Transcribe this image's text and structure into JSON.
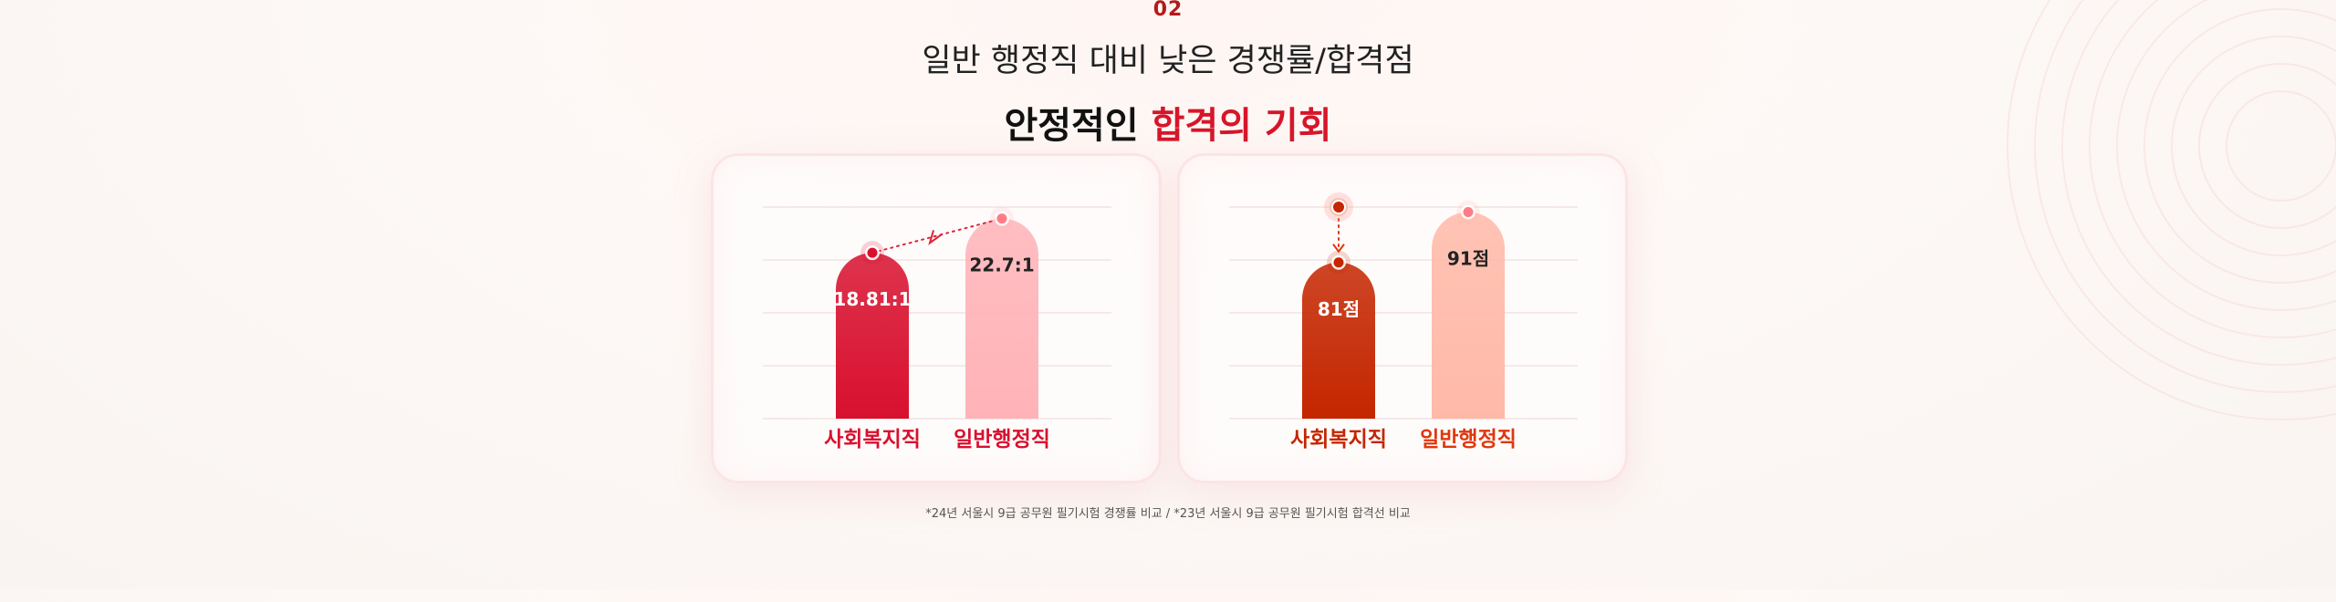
{
  "header": {
    "number": "02",
    "subtitle": "일반 행정직 대비 낮은 경쟁률/합격점",
    "title_plain": "안정적인",
    "title_accent": "합격의 기회"
  },
  "chart_data": [
    {
      "type": "bar",
      "categories": [
        "사회복지직",
        "일반행정직"
      ],
      "values": [
        18.81,
        22.7
      ],
      "value_labels": [
        "18.81:1",
        "22.7:1"
      ],
      "ylim": [
        0,
        24
      ],
      "grid": true,
      "bar_colors": [
        "#d8102e",
        "#ffb3b8"
      ],
      "category_colors": [
        "#d8102e",
        "#d8102e"
      ],
      "value_label_colors": [
        "#ffffff",
        "#222222"
      ]
    },
    {
      "type": "bar",
      "categories": [
        "사회복지직",
        "일반행정직"
      ],
      "values": [
        81,
        91
      ],
      "value_labels": [
        "81점",
        "91점"
      ],
      "ylim": [
        50,
        92
      ],
      "grid": true,
      "bar_colors": [
        "#c42600",
        "#ffb9a8"
      ],
      "category_colors": [
        "#c42600",
        "#e0370c"
      ],
      "value_label_colors": [
        "#ffffff",
        "#222222"
      ]
    }
  ],
  "footnote": "*24년 서울시 9급 공무원 필기시험 경쟁률 비교 / *23년 서울시 9급 공무원 필기시험 합격선 비교"
}
